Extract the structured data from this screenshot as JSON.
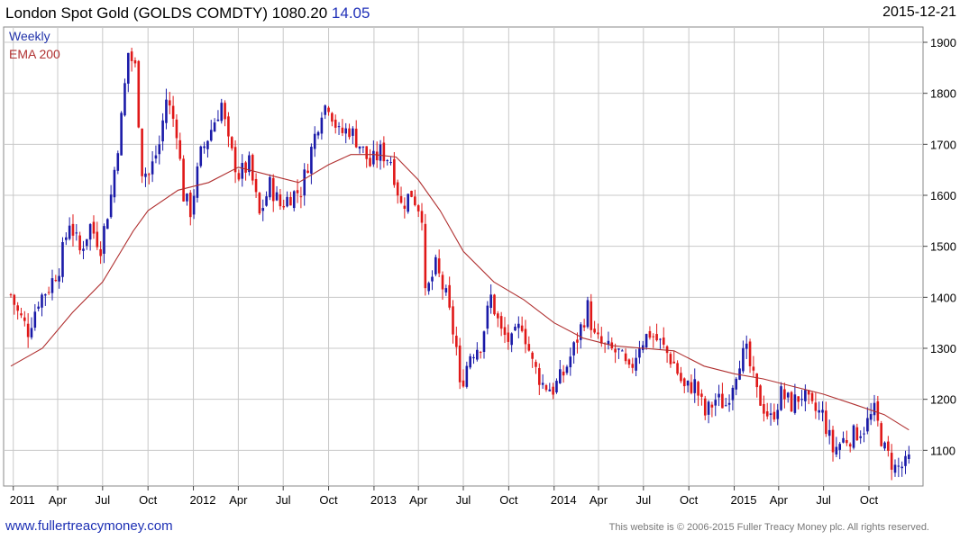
{
  "header": {
    "title": "London Spot Gold (GOLDS COMDTY) 1080.20",
    "change": "14.05",
    "date": "2015-12-21"
  },
  "footer": {
    "website": "www.fullertreacymoney.com",
    "copyright": "This website is © 2006-2015 Fuller Treacy Money plc. All rights reserved."
  },
  "colors": {
    "up": "#1a1aa8",
    "down": "#e01818",
    "ema": "#b03030",
    "grid": "#c8c8c8"
  },
  "chart_data": {
    "type": "candlestick",
    "legend": [
      "Weekly",
      "EMA 200"
    ],
    "ylim": [
      1030,
      1930
    ],
    "y_ticks": [
      1100,
      1200,
      1300,
      1400,
      1500,
      1600,
      1700,
      1800,
      1900
    ],
    "x_ticks": [
      {
        "label": "2011",
        "date": "2011-01-01"
      },
      {
        "label": "Apr",
        "date": "2011-04-01"
      },
      {
        "label": "Jul",
        "date": "2011-07-01"
      },
      {
        "label": "Oct",
        "date": "2011-10-01"
      },
      {
        "label": "2012",
        "date": "2012-01-01"
      },
      {
        "label": "Apr",
        "date": "2012-04-01"
      },
      {
        "label": "Jul",
        "date": "2012-07-01"
      },
      {
        "label": "Oct",
        "date": "2012-10-01"
      },
      {
        "label": "2013",
        "date": "2013-01-01"
      },
      {
        "label": "Apr",
        "date": "2013-04-01"
      },
      {
        "label": "Jul",
        "date": "2013-07-01"
      },
      {
        "label": "Oct",
        "date": "2013-10-01"
      },
      {
        "label": "2014",
        "date": "2014-01-01"
      },
      {
        "label": "Apr",
        "date": "2014-04-01"
      },
      {
        "label": "Jul",
        "date": "2014-07-01"
      },
      {
        "label": "Oct",
        "date": "2014-10-01"
      },
      {
        "label": "2015",
        "date": "2015-01-01"
      },
      {
        "label": "Apr",
        "date": "2015-04-01"
      },
      {
        "label": "Jul",
        "date": "2015-07-01"
      },
      {
        "label": "Oct",
        "date": "2015-10-01"
      }
    ],
    "x_range": [
      "2010-12-27",
      "2016-01-04"
    ],
    "weekly_close_path": [
      [
        "2010-12-27",
        1405
      ],
      [
        "2011-01-10",
        1370
      ],
      [
        "2011-01-31",
        1335
      ],
      [
        "2011-02-21",
        1395
      ],
      [
        "2011-03-14",
        1420
      ],
      [
        "2011-04-04",
        1460
      ],
      [
        "2011-04-25",
        1550
      ],
      [
        "2011-05-16",
        1490
      ],
      [
        "2011-06-06",
        1540
      ],
      [
        "2011-06-27",
        1500
      ],
      [
        "2011-07-18",
        1600
      ],
      [
        "2011-08-08",
        1750
      ],
      [
        "2011-08-22",
        1880
      ],
      [
        "2011-09-05",
        1850
      ],
      [
        "2011-09-19",
        1650
      ],
      [
        "2011-10-03",
        1640
      ],
      [
        "2011-10-24",
        1700
      ],
      [
        "2011-11-07",
        1790
      ],
      [
        "2011-11-28",
        1730
      ],
      [
        "2011-12-12",
        1600
      ],
      [
        "2011-12-26",
        1570
      ],
      [
        "2012-01-16",
        1680
      ],
      [
        "2012-02-06",
        1730
      ],
      [
        "2012-02-27",
        1780
      ],
      [
        "2012-03-12",
        1700
      ],
      [
        "2012-04-02",
        1640
      ],
      [
        "2012-04-23",
        1660
      ],
      [
        "2012-05-14",
        1560
      ],
      [
        "2012-06-04",
        1620
      ],
      [
        "2012-06-25",
        1580
      ],
      [
        "2012-07-16",
        1600
      ],
      [
        "2012-08-06",
        1610
      ],
      [
        "2012-08-27",
        1690
      ],
      [
        "2012-09-17",
        1770
      ],
      [
        "2012-10-01",
        1780
      ],
      [
        "2012-10-22",
        1720
      ],
      [
        "2012-11-12",
        1730
      ],
      [
        "2012-12-03",
        1700
      ],
      [
        "2012-12-24",
        1660
      ],
      [
        "2013-01-14",
        1685
      ],
      [
        "2013-02-04",
        1670
      ],
      [
        "2013-02-25",
        1580
      ],
      [
        "2013-03-18",
        1605
      ],
      [
        "2013-04-08",
        1565
      ],
      [
        "2013-04-15",
        1400
      ],
      [
        "2013-05-06",
        1460
      ],
      [
        "2013-05-27",
        1400
      ],
      [
        "2013-06-17",
        1300
      ],
      [
        "2013-06-24",
        1220
      ],
      [
        "2013-07-15",
        1290
      ],
      [
        "2013-08-05",
        1310
      ],
      [
        "2013-08-26",
        1400
      ],
      [
        "2013-09-16",
        1330
      ],
      [
        "2013-10-07",
        1310
      ],
      [
        "2013-10-28",
        1350
      ],
      [
        "2013-11-18",
        1270
      ],
      [
        "2013-12-09",
        1230
      ],
      [
        "2013-12-30",
        1220
      ],
      [
        "2014-01-20",
        1250
      ],
      [
        "2014-02-10",
        1300
      ],
      [
        "2014-03-10",
        1380
      ],
      [
        "2014-03-24",
        1320
      ],
      [
        "2014-04-14",
        1300
      ],
      [
        "2014-05-12",
        1290
      ],
      [
        "2014-06-02",
        1250
      ],
      [
        "2014-06-23",
        1310
      ],
      [
        "2014-07-14",
        1330
      ],
      [
        "2014-08-04",
        1310
      ],
      [
        "2014-09-01",
        1270
      ],
      [
        "2014-09-22",
        1220
      ],
      [
        "2014-10-13",
        1230
      ],
      [
        "2014-11-03",
        1170
      ],
      [
        "2014-11-24",
        1200
      ],
      [
        "2014-12-15",
        1190
      ],
      [
        "2015-01-12",
        1280
      ],
      [
        "2015-01-26",
        1290
      ],
      [
        "2015-02-16",
        1210
      ],
      [
        "2015-03-16",
        1160
      ],
      [
        "2015-04-06",
        1210
      ],
      [
        "2015-04-27",
        1190
      ],
      [
        "2015-05-18",
        1210
      ],
      [
        "2015-06-08",
        1180
      ],
      [
        "2015-06-29",
        1170
      ],
      [
        "2015-07-20",
        1100
      ],
      [
        "2015-08-10",
        1120
      ],
      [
        "2015-08-31",
        1130
      ],
      [
        "2015-09-21",
        1145
      ],
      [
        "2015-10-12",
        1175
      ],
      [
        "2015-11-02",
        1100
      ],
      [
        "2015-11-23",
        1065
      ],
      [
        "2015-12-14",
        1070
      ],
      [
        "2015-12-21",
        1080
      ]
    ],
    "ema_200": [
      [
        "2010-12-27",
        1265
      ],
      [
        "2011-03-01",
        1300
      ],
      [
        "2011-05-01",
        1370
      ],
      [
        "2011-07-01",
        1430
      ],
      [
        "2011-08-01",
        1480
      ],
      [
        "2011-09-01",
        1530
      ],
      [
        "2011-10-01",
        1570
      ],
      [
        "2011-12-01",
        1610
      ],
      [
        "2012-02-01",
        1625
      ],
      [
        "2012-04-01",
        1655
      ],
      [
        "2012-06-01",
        1640
      ],
      [
        "2012-08-01",
        1625
      ],
      [
        "2012-10-01",
        1660
      ],
      [
        "2012-11-15",
        1680
      ],
      [
        "2013-01-01",
        1680
      ],
      [
        "2013-02-15",
        1675
      ],
      [
        "2013-04-01",
        1630
      ],
      [
        "2013-05-15",
        1570
      ],
      [
        "2013-07-01",
        1490
      ],
      [
        "2013-09-01",
        1430
      ],
      [
        "2013-11-01",
        1395
      ],
      [
        "2014-01-01",
        1350
      ],
      [
        "2014-03-01",
        1320
      ],
      [
        "2014-05-01",
        1305
      ],
      [
        "2014-07-01",
        1300
      ],
      [
        "2014-09-01",
        1295
      ],
      [
        "2014-11-01",
        1265
      ],
      [
        "2015-01-01",
        1250
      ],
      [
        "2015-03-01",
        1240
      ],
      [
        "2015-05-01",
        1225
      ],
      [
        "2015-07-01",
        1210
      ],
      [
        "2015-09-01",
        1190
      ],
      [
        "2015-11-01",
        1170
      ],
      [
        "2015-12-21",
        1140
      ]
    ]
  }
}
